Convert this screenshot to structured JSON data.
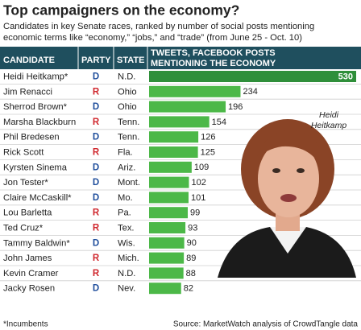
{
  "chart_data": {
    "type": "bar",
    "title": "Top campaigners on the economy?",
    "subtitle": [
      "Candidates in key Senate races, ranked by number of social posts mentioning",
      "economic terms like “economy,” “jobs,” and “trade” (from June 25 - Oct. 10)"
    ],
    "column_headers": [
      "CANDIDATE",
      "PARTY",
      "STATE",
      [
        "TWEETS, FACEBOOK POSTS",
        "MENTIONING THE ECONOMY"
      ]
    ],
    "categories": [
      "Heidi Heitkamp*",
      "Jim Renacci",
      "Sherrod Brown*",
      "Marsha Blackburn",
      "Phil Bredesen",
      "Rick Scott",
      "Kyrsten Sinema",
      "Jon Tester*",
      "Claire McCaskill*",
      "Lou Barletta",
      "Ted Cruz*",
      "Tammy Baldwin*",
      "John James",
      "Kevin Cramer",
      "Jacky Rosen"
    ],
    "parties": [
      "D",
      "R",
      "D",
      "R",
      "D",
      "R",
      "D",
      "D",
      "D",
      "R",
      "R",
      "D",
      "R",
      "R",
      "D"
    ],
    "states": [
      "N.D.",
      "Ohio",
      "Ohio",
      "Tenn.",
      "Tenn.",
      "Fla.",
      "Ariz.",
      "Mont.",
      "Mo.",
      "Pa.",
      "Tex.",
      "Wis.",
      "Mich.",
      "N.D.",
      "Nev."
    ],
    "values": [
      530,
      234,
      196,
      154,
      126,
      125,
      109,
      102,
      101,
      99,
      93,
      90,
      89,
      88,
      82
    ],
    "color": "#4cb848",
    "highlight_color": "#2f8f3a",
    "header_color": "#1f4f5e",
    "party_colors": {
      "D": "#1f4e9c",
      "R": "#d0282e"
    },
    "annotation": [
      "Heidi",
      "Heitkamp"
    ],
    "footnote": "*Incumbents",
    "source": "Source: MarketWatch analysis of CrowdTangle data"
  }
}
